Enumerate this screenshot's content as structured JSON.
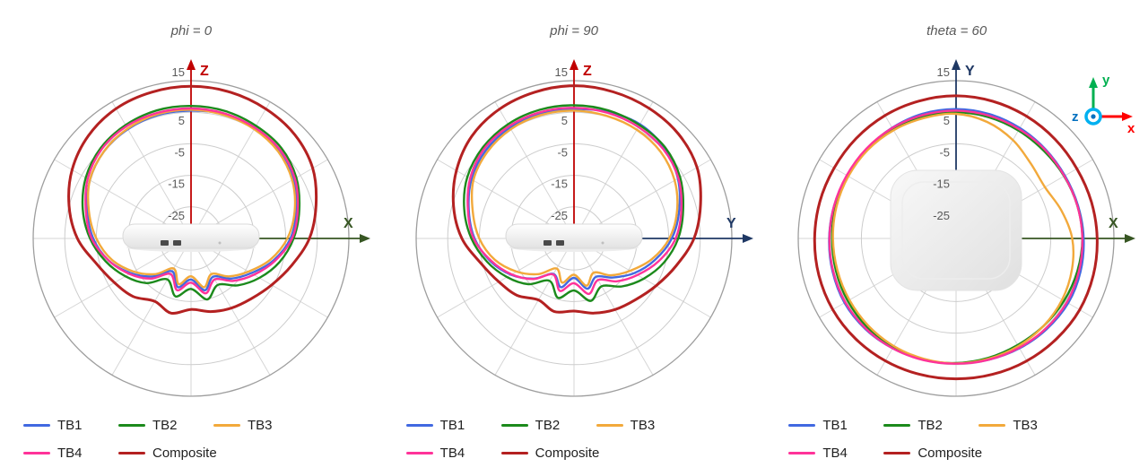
{
  "chart_data": [
    {
      "type": "polar",
      "title": "phi = 0",
      "angle_step_deg": 15,
      "angle_convention": "0 deg = up, clockwise",
      "r_min": -35,
      "r_max": 15,
      "r_rings": [
        15,
        5,
        -5,
        -15,
        -25
      ],
      "grid": "rings every 10 dB, spokes every 30 deg",
      "axes": {
        "up": {
          "label": "Z",
          "color": "#C00000"
        },
        "right": {
          "label": "X",
          "color": "#375623"
        }
      },
      "device": "access-point-side-view",
      "series": [
        {
          "name": "TB1",
          "color": "#4169E1",
          "values": [
            5.5,
            5.8,
            5.5,
            4.5,
            2.5,
            -0.5,
            -3.5,
            -8,
            -13,
            -17,
            -21,
            -18,
            -22,
            -19,
            -23,
            -18,
            -13,
            -8,
            -4,
            -1,
            2,
            4,
            5,
            5.5
          ]
        },
        {
          "name": "TB2",
          "color": "#1C8A1C",
          "values": [
            7,
            6.8,
            6.2,
            5.5,
            3.5,
            0.5,
            -2.5,
            -6,
            -10,
            -14,
            -18,
            -15,
            -19,
            -16,
            -20,
            -15,
            -11,
            -7,
            -3,
            0.5,
            3.5,
            5.5,
            6.5,
            7
          ]
        },
        {
          "name": "TB3",
          "color": "#F2A93B",
          "values": [
            5.8,
            5.5,
            5,
            4,
            2,
            -1,
            -4.5,
            -9,
            -14,
            -18,
            -22,
            -19,
            -23,
            -20,
            -24,
            -19,
            -14,
            -9,
            -5,
            -1.5,
            2,
            4,
            5.2,
            5.8
          ]
        },
        {
          "name": "TB4",
          "color": "#FF3399",
          "values": [
            6.2,
            6,
            5.5,
            4.8,
            3,
            0,
            -3,
            -7.5,
            -12,
            -16,
            -20,
            -17,
            -21,
            -18,
            -22,
            -17,
            -12.5,
            -8,
            -3.5,
            -0.5,
            2.8,
            5,
            6,
            6.2
          ]
        },
        {
          "name": "Composite",
          "color": "#B42121",
          "values": [
            13.2,
            13,
            12.4,
            11.5,
            9.5,
            6,
            2.5,
            -2,
            -5.5,
            -8,
            -9.5,
            -11,
            -12.5,
            -10.5,
            -12,
            -9,
            -7,
            -4,
            1,
            5,
            8.5,
            11,
            12.5,
            13
          ]
        }
      ]
    },
    {
      "type": "polar",
      "title": "phi = 90",
      "angle_step_deg": 15,
      "angle_convention": "0 deg = up, clockwise",
      "r_min": -35,
      "r_max": 15,
      "r_rings": [
        15,
        5,
        -5,
        -15,
        -25
      ],
      "grid": "rings every 10 dB, spokes every 30 deg",
      "axes": {
        "up": {
          "label": "Z",
          "color": "#C00000"
        },
        "right": {
          "label": "Y",
          "color": "#1F3864"
        }
      },
      "device": "access-point-side-view",
      "series": [
        {
          "name": "TB1",
          "color": "#4169E1",
          "values": [
            6,
            6.5,
            6.8,
            5.5,
            3,
            -0.5,
            -4,
            -8.5,
            -13,
            -17.5,
            -21,
            -18.5,
            -22.5,
            -19,
            -22,
            -17,
            -12,
            -7.5,
            -3.5,
            -0.5,
            2.5,
            4.5,
            5.5,
            6
          ]
        },
        {
          "name": "TB2",
          "color": "#1C8A1C",
          "values": [
            7.2,
            7,
            6.5,
            5.8,
            3.8,
            0.8,
            -2,
            -5.5,
            -9.5,
            -13.5,
            -17.5,
            -14.5,
            -18.5,
            -15.5,
            -19.5,
            -14.5,
            -10.5,
            -6.5,
            -2.5,
            1,
            4,
            5.8,
            6.8,
            7.2
          ]
        },
        {
          "name": "TB3",
          "color": "#F2A93B",
          "values": [
            5.5,
            5.2,
            4.8,
            3.8,
            1.8,
            -1.2,
            -4.8,
            -9.5,
            -14.5,
            -18.5,
            -22.5,
            -19.5,
            -23.5,
            -20.5,
            -24,
            -19,
            -14,
            -9,
            -5,
            -1.8,
            1.8,
            3.8,
            5,
            5.5
          ]
        },
        {
          "name": "TB4",
          "color": "#FF3399",
          "values": [
            6.4,
            6.2,
            5.8,
            5,
            3.2,
            0.2,
            -2.8,
            -7.2,
            -11.8,
            -15.8,
            -19.8,
            -16.8,
            -20.8,
            -17.8,
            -21.8,
            -16.8,
            -12.2,
            -7.8,
            -3.2,
            -0.2,
            3,
            5.2,
            6.1,
            6.4
          ]
        },
        {
          "name": "Composite",
          "color": "#B42121",
          "values": [
            13.4,
            13.1,
            12.6,
            11.8,
            10,
            6.5,
            3,
            -1.5,
            -5,
            -7.5,
            -9,
            -10.5,
            -12,
            -11,
            -12.5,
            -9.5,
            -7.5,
            -4.5,
            0.5,
            4.5,
            8,
            10.8,
            12.3,
            13
          ]
        }
      ]
    },
    {
      "type": "polar",
      "title": "theta = 60",
      "angle_step_deg": 15,
      "angle_convention": "0 deg = up, clockwise",
      "r_min": -35,
      "r_max": 15,
      "r_rings": [
        15,
        5,
        -5,
        -15,
        -25
      ],
      "grid": "rings every 10 dB, spokes every 30 deg",
      "axes": {
        "up": {
          "label": "Y",
          "color": "#1F3864"
        },
        "right": {
          "label": "X",
          "color": "#375623"
        }
      },
      "device": "access-point-top-view",
      "triad": {
        "x": {
          "label": "x",
          "color": "#FF0000"
        },
        "y": {
          "label": "y",
          "color": "#00B050"
        },
        "z": {
          "label": "z",
          "color": "#0070C0",
          "ring_color": "#00B0F0"
        }
      },
      "series": [
        {
          "name": "TB1",
          "color": "#4169E1",
          "values": [
            6,
            5.8,
            5.4,
            5,
            4.8,
            5,
            5.4,
            5.8,
            6,
            5.6,
            5.2,
            4.8,
            4.6,
            4.8,
            5.2,
            5.6,
            5.8,
            5.5,
            5.2,
            5,
            4.9,
            5.1,
            5.5,
            5.9
          ]
        },
        {
          "name": "TB2",
          "color": "#1C8A1C",
          "values": [
            5,
            4.8,
            4.5,
            4.3,
            4.5,
            4.8,
            5,
            4.8,
            4.5,
            4.2,
            4,
            4.2,
            4.5,
            4.8,
            5,
            4.8,
            4.6,
            4.4,
            4.3,
            4.5,
            4.7,
            4.9,
            5,
            5
          ]
        },
        {
          "name": "TB3",
          "color": "#F2A93B",
          "values": [
            4.5,
            3.2,
            1,
            -1.5,
            -2.5,
            -0.5,
            1.8,
            3,
            3.8,
            4.2,
            4.4,
            4.5,
            4.6,
            4.5,
            4.4,
            4.2,
            4,
            3.9,
            4,
            4.2,
            4.4,
            4.6,
            4.6,
            4.5
          ]
        },
        {
          "name": "TB4",
          "color": "#FF3399",
          "values": [
            5.5,
            5.3,
            5,
            4.8,
            4.6,
            4.8,
            5,
            5.3,
            5.5,
            5.3,
            5,
            4.8,
            4.7,
            4.9,
            5.2,
            5.4,
            5.5,
            5.3,
            5.1,
            5,
            5,
            5.2,
            5.4,
            5.5
          ]
        },
        {
          "name": "Composite",
          "color": "#B42121",
          "values": [
            10.2,
            10,
            9.7,
            9.4,
            9.2,
            9.4,
            9.7,
            10,
            10.2,
            10,
            9.8,
            9.6,
            9.5,
            9.6,
            9.8,
            10,
            10.1,
            10,
            9.8,
            9.7,
            9.6,
            9.8,
            10,
            10.1
          ]
        }
      ]
    }
  ]
}
